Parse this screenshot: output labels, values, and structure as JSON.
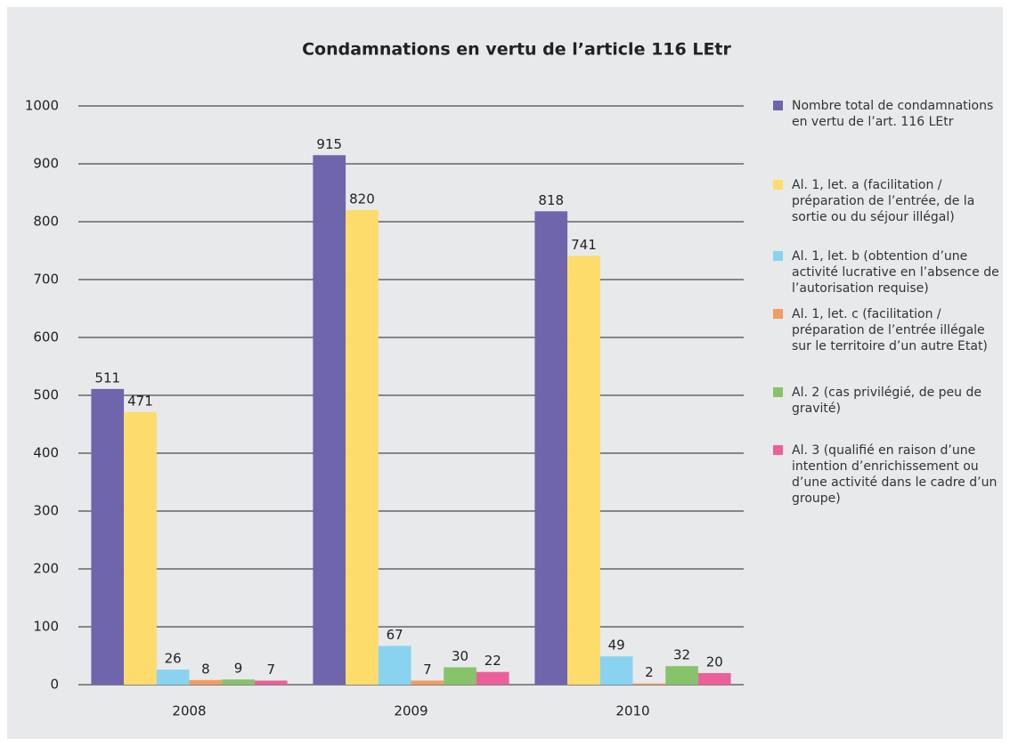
{
  "chart_data": {
    "type": "bar",
    "title": "Condamnations en vertu de l’article 116 LEtr",
    "categories": [
      "2008",
      "2009",
      "2010"
    ],
    "series": [
      {
        "name": "Nombre total de condamnations en vertu de l’art. 116 LEtr",
        "color": "#6f65ad",
        "values": [
          511,
          915,
          818
        ]
      },
      {
        "name": "Al. 1, let. a (facilitation / préparation de l’entrée, de la sortie ou du séjour illégal)",
        "color": "#fddc6b",
        "values": [
          471,
          820,
          741
        ]
      },
      {
        "name": "Al. 1, let. b (obtention d’une activité lucrative en l’absence de l’autorisation requise)",
        "color": "#8ad3f0",
        "values": [
          26,
          67,
          49
        ]
      },
      {
        "name": "Al. 1, let. c (facilitation / préparation de l’entrée illégale sur le territoire d’un autre Etat)",
        "color": "#f39c60",
        "values": [
          8,
          7,
          2
        ]
      },
      {
        "name": "Al. 2 (cas privilégié, de peu de gravité)",
        "color": "#86c36a",
        "values": [
          9,
          30,
          32
        ]
      },
      {
        "name": "Al. 3 (qualifié en raison d’une intention d’enrichissement ou d’une activité dans le cadre d’un groupe)",
        "color": "#ec5f9a",
        "values": [
          7,
          22,
          20
        ]
      }
    ],
    "ylim": [
      0,
      1000
    ],
    "yticks": [
      0,
      100,
      200,
      300,
      400,
      500,
      600,
      700,
      800,
      900,
      1000
    ],
    "grid": true,
    "legend": "right"
  }
}
